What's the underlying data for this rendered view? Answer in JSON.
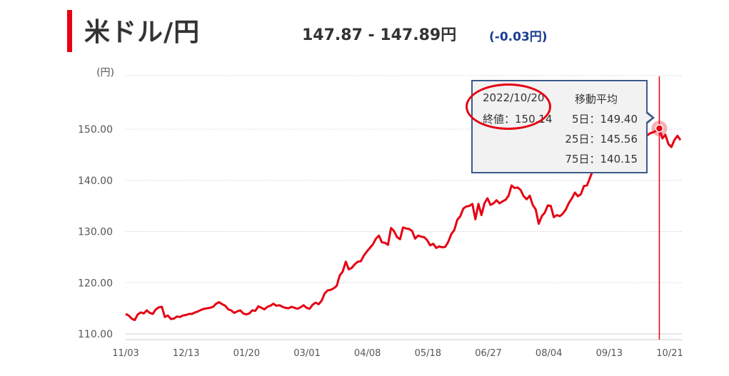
{
  "header": {
    "title": "米ドル/円",
    "price_range": "147.87 - 147.89円",
    "change": "(-0.03円)"
  },
  "tooltip": {
    "date": "2022/10/20",
    "close_label": "終値：150.14",
    "ma_title": "移動平均",
    "ma5": "5日：149.40",
    "ma25": "25日：145.56",
    "ma75": "75日：140.15"
  },
  "colors": {
    "accent": "#e60012",
    "line": "#e60012",
    "tooltip_border": "#3b5a8c",
    "change": "#1a3d8f"
  },
  "chart_data": {
    "type": "line",
    "title": "",
    "ylabel": "(円)",
    "ylim": [
      108.5,
      160
    ],
    "yticks": [
      110,
      120,
      130,
      140,
      150
    ],
    "ytick_labels": [
      "110.00",
      "120.00",
      "130.00",
      "140.00",
      "150.00"
    ],
    "xtick_labels": [
      "11/03",
      "12/13",
      "01/20",
      "03/01",
      "04/08",
      "05/18",
      "06/27",
      "08/04",
      "09/13",
      "10/21"
    ],
    "highlight": {
      "date": "2022/10/20",
      "value": 150.14
    },
    "series": [
      {
        "values": [
          113.9,
          113.6,
          113.0,
          112.7,
          113.8,
          114.2,
          114.0,
          114.6,
          114.1,
          113.9,
          114.8,
          115.2,
          115.3,
          113.3,
          113.6,
          112.9,
          113.0,
          113.4,
          113.3,
          113.6,
          113.7,
          113.9,
          113.9,
          114.2,
          114.4,
          114.7,
          114.9,
          115.0,
          115.1,
          115.3,
          115.9,
          116.2,
          115.8,
          115.5,
          114.8,
          114.6,
          114.1,
          114.4,
          114.6,
          114.0,
          113.8,
          114.0,
          114.6,
          114.5,
          115.4,
          115.1,
          114.8,
          115.3,
          115.5,
          115.9,
          115.5,
          115.6,
          115.3,
          115.1,
          115.0,
          115.3,
          115.1,
          114.9,
          115.2,
          115.6,
          115.1,
          114.9,
          115.7,
          116.1,
          115.8,
          116.5,
          117.9,
          118.5,
          118.6,
          118.9,
          119.4,
          121.4,
          122.2,
          124.1,
          122.6,
          122.9,
          123.6,
          124.1,
          124.2,
          125.3,
          126.1,
          126.8,
          127.5,
          128.6,
          129.2,
          127.9,
          127.8,
          127.4,
          130.7,
          130.1,
          128.9,
          128.5,
          130.8,
          130.6,
          130.5,
          130.1,
          128.6,
          129.2,
          129.0,
          128.9,
          128.3,
          127.3,
          127.6,
          126.8,
          127.1,
          126.9,
          127.0,
          128.0,
          129.5,
          130.3,
          132.3,
          133.0,
          134.5,
          134.9,
          135.0,
          135.4,
          132.4,
          135.4,
          133.2,
          135.5,
          136.5,
          135.2,
          135.5,
          136.1,
          135.5,
          135.9,
          136.2,
          137.0,
          139.0,
          138.5,
          138.6,
          138.1,
          136.9,
          136.3,
          137.0,
          135.2,
          134.3,
          131.5,
          133.0,
          133.7,
          135.1,
          135.0,
          132.8,
          133.2,
          133.0,
          133.5,
          134.3,
          135.6,
          136.5,
          137.6,
          136.9,
          137.3,
          138.9,
          139.0,
          140.5,
          142.0,
          143.0,
          142.7,
          143.5,
          144.2,
          142.9,
          143.5,
          142.7,
          143.9,
          144.0,
          143.4,
          144.6,
          145.0,
          145.7,
          146.1,
          146.5,
          147.5,
          148.0,
          148.8,
          149.2,
          149.4,
          149.7,
          150.14,
          148.2,
          148.9,
          147.1,
          146.5,
          147.9,
          148.7,
          147.87
        ]
      }
    ]
  }
}
